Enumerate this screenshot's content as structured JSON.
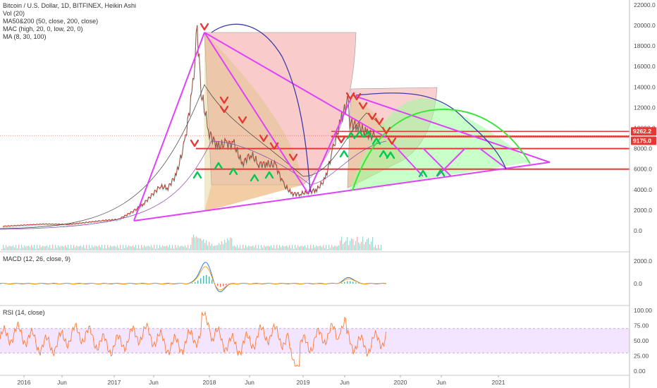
{
  "legend": {
    "title": "Bitcoin / U.S. Dollar, 1D, BITFINEX, Heikin Ashi",
    "lines": [
      "Vol (20)",
      "MA50&200 (50, close, 200, close)",
      "MAC (high, 20, 0, low, 20, 0)",
      "MA (8, 30, 100)"
    ]
  },
  "macd_label": "MACD (12, 26, close, 9)",
  "rsi_label": "RSI (14, close)",
  "price_badges": [
    {
      "text": "9262.2",
      "value": 9262.2,
      "color": "#e53935"
    },
    {
      "text": "9175.0",
      "value": 9175.0,
      "color": "#e53935"
    }
  ],
  "colors": {
    "magenta": "#e040fb",
    "red_line": "#e53935",
    "green_arrow": "#00c853",
    "red_arrow": "#e53935",
    "arc_blue": "#3d3da8",
    "arc_green": "#39e639",
    "rsi_band": "#f3e5ff",
    "rsi_line": "#ff7a2f"
  },
  "chart_data": [
    {
      "type": "line",
      "title": "Bitcoin / U.S. Dollar, 1D, BITFINEX, Heikin Ashi",
      "x_ticks": [
        "2016",
        "Jun",
        "2017",
        "Jun",
        "2018",
        "Jun",
        "2019",
        "Jun",
        "2020",
        "Jun",
        "2021"
      ],
      "y_ticks": [
        "22000.0",
        "20000.0",
        "18000.0",
        "16000.0",
        "14000.0",
        "12000.0",
        "10000.0",
        "8000.0",
        "6000.0",
        "4000.0",
        "2000.0",
        "0.0"
      ],
      "ylim": [
        0,
        22000
      ],
      "series": [
        {
          "x": [
            "2016-01",
            "2016-06",
            "2016-09",
            "2017-01",
            "2017-03",
            "2017-05",
            "2017-06",
            "2017-08",
            "2017-09",
            "2017-10",
            "2017-11",
            "2017-12",
            "2017-12-17",
            "2018-01",
            "2018-02",
            "2018-03",
            "2018-04",
            "2018-05",
            "2018-06",
            "2018-07",
            "2018-08",
            "2018-09",
            "2018-10",
            "2018-11",
            "2018-12",
            "2019-01",
            "2019-02",
            "2019-03",
            "2019-04",
            "2019-05",
            "2019-06",
            "2019-06-26",
            "2019-07",
            "2019-08",
            "2019-09",
            "2019-10"
          ],
          "values": [
            430,
            650,
            610,
            980,
            1100,
            2000,
            2600,
            4300,
            4200,
            5500,
            8500,
            14000,
            19600,
            13500,
            9500,
            8200,
            8500,
            8400,
            6500,
            7500,
            6500,
            6500,
            6400,
            4500,
            3600,
            3600,
            3800,
            4000,
            5000,
            8000,
            11000,
            12800,
            10500,
            10200,
            9500,
            9200
          ]
        }
      ],
      "annotations": {
        "horizontal_lines": [
          9262.2,
          9175.0,
          8000,
          6000
        ]
      }
    },
    {
      "type": "line",
      "title": "MACD (12, 26, close, 9)",
      "y_ticks": [
        "2000.0",
        "0.0"
      ],
      "ylim": [
        -1000,
        2600
      ]
    },
    {
      "type": "line",
      "title": "RSI (14, close)",
      "y_ticks": [
        "100.00",
        "75.00",
        "50.00",
        "25.00",
        "0.00"
      ],
      "ylim": [
        0,
        100
      ],
      "band": [
        30,
        70
      ]
    }
  ]
}
